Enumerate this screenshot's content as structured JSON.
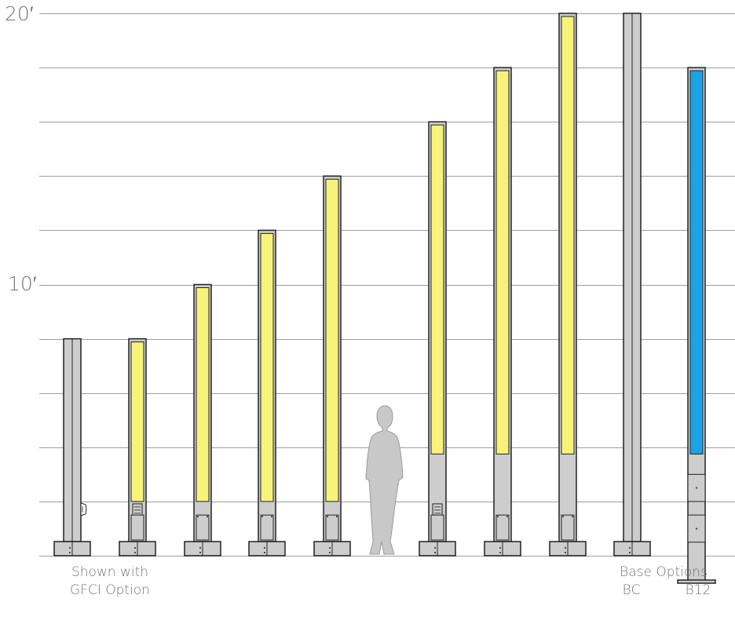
{
  "axis": {
    "tick_labels": [
      "20′",
      "10′"
    ],
    "max_ft": 20,
    "gridline_step_ft": 2
  },
  "colors": {
    "pole": "#cdcdcd",
    "outline": "#222222",
    "gridline": "#9e9e9e",
    "lens_standard": "#f7f37a",
    "lens_alternate": "#1aa3e6",
    "person": "#c8c8c8"
  },
  "poles": [
    {
      "id": "pole-gfci-option",
      "height_ft": 8,
      "lens": "none",
      "feature": "gfci-outlet",
      "base": "BC"
    },
    {
      "id": "pole-8ft",
      "height_ft": 8,
      "lens": "standard",
      "feature": "outlet-box",
      "base": "BC"
    },
    {
      "id": "pole-10ft",
      "height_ft": 10,
      "lens": "standard",
      "feature": "access-panel",
      "base": "BC"
    },
    {
      "id": "pole-12ft",
      "height_ft": 12,
      "lens": "standard",
      "feature": "access-panel",
      "base": "BC"
    },
    {
      "id": "pole-14ft",
      "height_ft": 14,
      "lens": "standard",
      "feature": "access-panel",
      "base": "BC"
    },
    {
      "id": "pole-16ft",
      "height_ft": 16,
      "lens": "standard",
      "feature": "outlet-box",
      "base": "BC"
    },
    {
      "id": "pole-18ft",
      "height_ft": 18,
      "lens": "standard",
      "feature": "access-panel",
      "base": "BC"
    },
    {
      "id": "pole-20ft",
      "height_ft": 20,
      "lens": "standard",
      "feature": "access-panel",
      "base": "BC"
    },
    {
      "id": "pole-base-bc",
      "height_ft": 20,
      "lens": "none",
      "feature": "none",
      "base": "BC"
    },
    {
      "id": "pole-base-b12",
      "height_ft": 18,
      "lens": "alternate",
      "feature": "access-panels",
      "base": "B12"
    }
  ],
  "labels": {
    "gfci_line1": "Shown with",
    "gfci_line2": "GFCI Option",
    "base_options": "Base Options",
    "base_bc": "BC",
    "base_b12": "B12"
  }
}
